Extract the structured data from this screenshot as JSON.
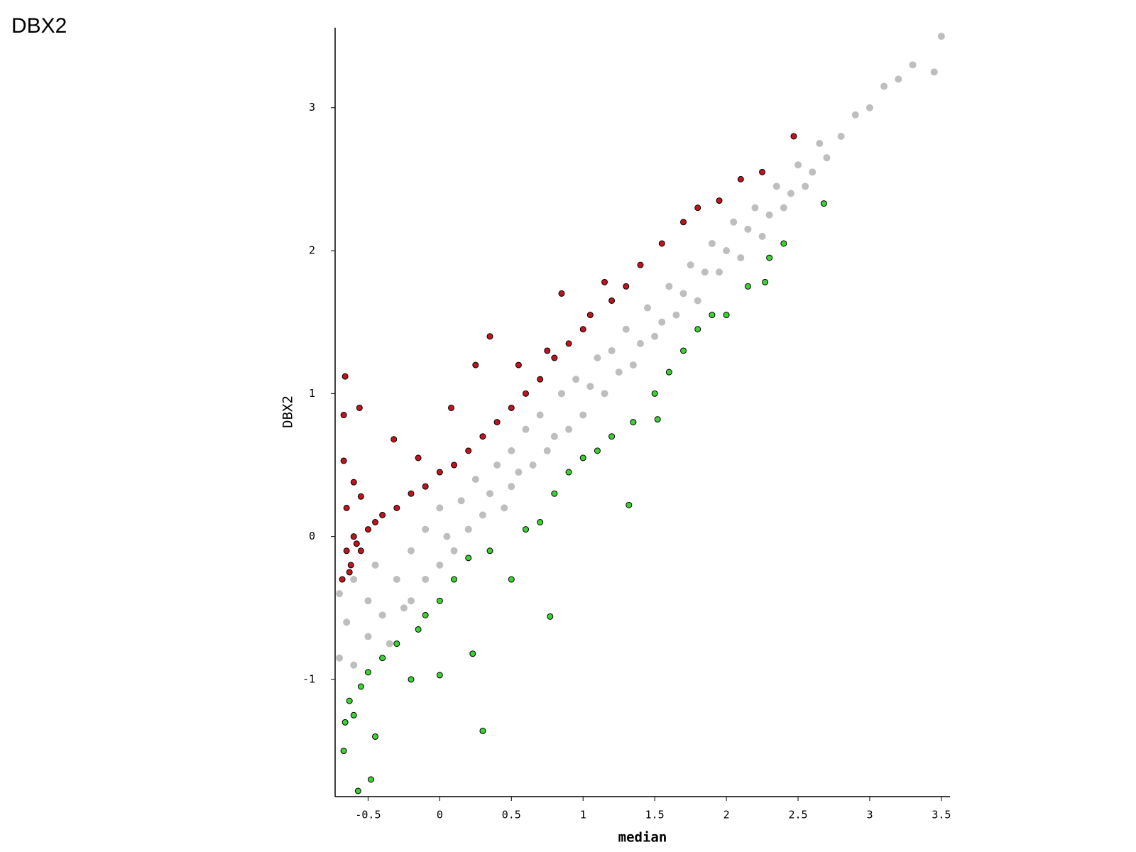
{
  "chart_data": {
    "type": "scatter",
    "title": "DBX2",
    "x_label": "median",
    "y_label": "DBX2",
    "xlim": [
      -0.73,
      3.56
    ],
    "ylim": [
      -1.82,
      3.56
    ],
    "xticks": [
      -0.5,
      0,
      0.5,
      1,
      1.5,
      2,
      2.5,
      3,
      3.5
    ],
    "yticks": [
      -1,
      0,
      1,
      2,
      3
    ],
    "series": [
      {
        "color": "#bebebe",
        "x": [
          -0.7,
          -0.7,
          -0.65,
          -0.6,
          -0.6,
          -0.5,
          -0.5,
          -0.45,
          -0.4,
          -0.35,
          -0.3,
          -0.25,
          -0.2,
          -0.2,
          -0.1,
          -0.1,
          0,
          0,
          0.05,
          0.1,
          0.15,
          0.2,
          0.25,
          0.3,
          0.35,
          0.4,
          0.45,
          0.5,
          0.5,
          0.55,
          0.6,
          0.65,
          0.7,
          0.75,
          0.8,
          0.85,
          0.9,
          0.95,
          1,
          1.05,
          1.1,
          1.15,
          1.2,
          1.25,
          1.3,
          1.35,
          1.4,
          1.45,
          1.5,
          1.55,
          1.6,
          1.65,
          1.7,
          1.75,
          1.8,
          1.85,
          1.9,
          1.95,
          2,
          2.05,
          2.1,
          2.15,
          2.2,
          2.25,
          2.3,
          2.35,
          2.4,
          2.45,
          2.5,
          2.55,
          2.6,
          2.65,
          2.7,
          2.8,
          2.9,
          3.0,
          3.1,
          3.2,
          3.3,
          3.45,
          3.5
        ],
        "values": [
          -0.85,
          -0.4,
          -0.6,
          -0.3,
          -0.9,
          -0.45,
          -0.7,
          -0.2,
          -0.55,
          -0.75,
          -0.3,
          -0.5,
          -0.1,
          -0.45,
          -0.3,
          0.05,
          -0.2,
          0.2,
          0,
          -0.1,
          0.25,
          0.05,
          0.4,
          0.15,
          0.3,
          0.5,
          0.2,
          0.6,
          0.35,
          0.45,
          0.75,
          0.5,
          0.85,
          0.6,
          0.7,
          1.0,
          0.75,
          1.1,
          0.85,
          1.05,
          1.25,
          1.0,
          1.3,
          1.15,
          1.45,
          1.2,
          1.35,
          1.6,
          1.4,
          1.5,
          1.75,
          1.55,
          1.7,
          1.9,
          1.65,
          1.85,
          2.05,
          1.85,
          2.0,
          2.2,
          1.95,
          2.15,
          2.3,
          2.1,
          2.25,
          2.45,
          2.3,
          2.4,
          2.6,
          2.45,
          2.55,
          2.75,
          2.65,
          2.8,
          2.95,
          3.0,
          3.15,
          3.2,
          3.3,
          3.25,
          3.5
        ]
      },
      {
        "color": "#c0141e",
        "edgecolor": "#000000",
        "x": [
          -0.66,
          -0.67,
          -0.56,
          -0.67,
          -0.6,
          -0.55,
          -0.65,
          -0.6,
          -0.65,
          -0.62,
          -0.58,
          -0.68,
          -0.63,
          -0.55,
          -0.5,
          -0.45,
          -0.4,
          -0.32,
          -0.3,
          -0.2,
          -0.15,
          -0.1,
          0,
          0.08,
          0.1,
          0.2,
          0.25,
          0.3,
          0.35,
          0.4,
          0.5,
          0.55,
          0.6,
          0.7,
          0.75,
          0.8,
          0.85,
          0.9,
          1.0,
          1.05,
          1.15,
          1.2,
          1.3,
          1.4,
          1.55,
          1.7,
          1.8,
          1.95,
          2.1,
          2.25,
          2.47
        ],
        "values": [
          1.12,
          0.85,
          0.9,
          0.53,
          0.38,
          0.28,
          0.2,
          0.0,
          -0.1,
          -0.2,
          -0.05,
          -0.3,
          -0.25,
          -0.1,
          0.05,
          0.1,
          0.15,
          0.68,
          0.2,
          0.3,
          0.55,
          0.35,
          0.45,
          0.9,
          0.5,
          0.6,
          1.2,
          0.7,
          1.4,
          0.8,
          0.9,
          1.2,
          1.0,
          1.1,
          1.3,
          1.25,
          1.7,
          1.35,
          1.45,
          1.55,
          1.78,
          1.65,
          1.75,
          1.9,
          2.05,
          2.2,
          2.3,
          2.35,
          2.5,
          2.55,
          2.8
        ]
      },
      {
        "color": "#3cd232",
        "edgecolor": "#000000",
        "x": [
          -0.67,
          -0.66,
          -0.63,
          -0.6,
          -0.55,
          -0.5,
          -0.45,
          -0.48,
          -0.57,
          -0.4,
          -0.3,
          -0.2,
          -0.15,
          -0.1,
          0,
          0,
          0.1,
          0.2,
          0.23,
          0.3,
          0.35,
          0.5,
          0.6,
          0.7,
          0.77,
          0.8,
          0.9,
          1.0,
          1.1,
          1.2,
          1.32,
          1.35,
          1.5,
          1.52,
          1.6,
          1.7,
          1.8,
          1.9,
          2.0,
          2.15,
          2.27,
          2.3,
          2.4,
          2.68
        ],
        "values": [
          -1.5,
          -1.3,
          -1.15,
          -1.25,
          -1.05,
          -0.95,
          -1.4,
          -1.7,
          -1.78,
          -0.85,
          -0.75,
          -1.0,
          -0.65,
          -0.55,
          -0.97,
          -0.45,
          -0.3,
          -0.15,
          -0.82,
          -1.36,
          -0.1,
          -0.3,
          0.05,
          0.1,
          -0.56,
          0.3,
          0.45,
          0.55,
          0.6,
          0.7,
          0.22,
          0.8,
          1.0,
          0.82,
          1.15,
          1.3,
          1.45,
          1.55,
          1.55,
          1.75,
          1.78,
          1.95,
          2.05,
          2.33
        ]
      }
    ]
  }
}
